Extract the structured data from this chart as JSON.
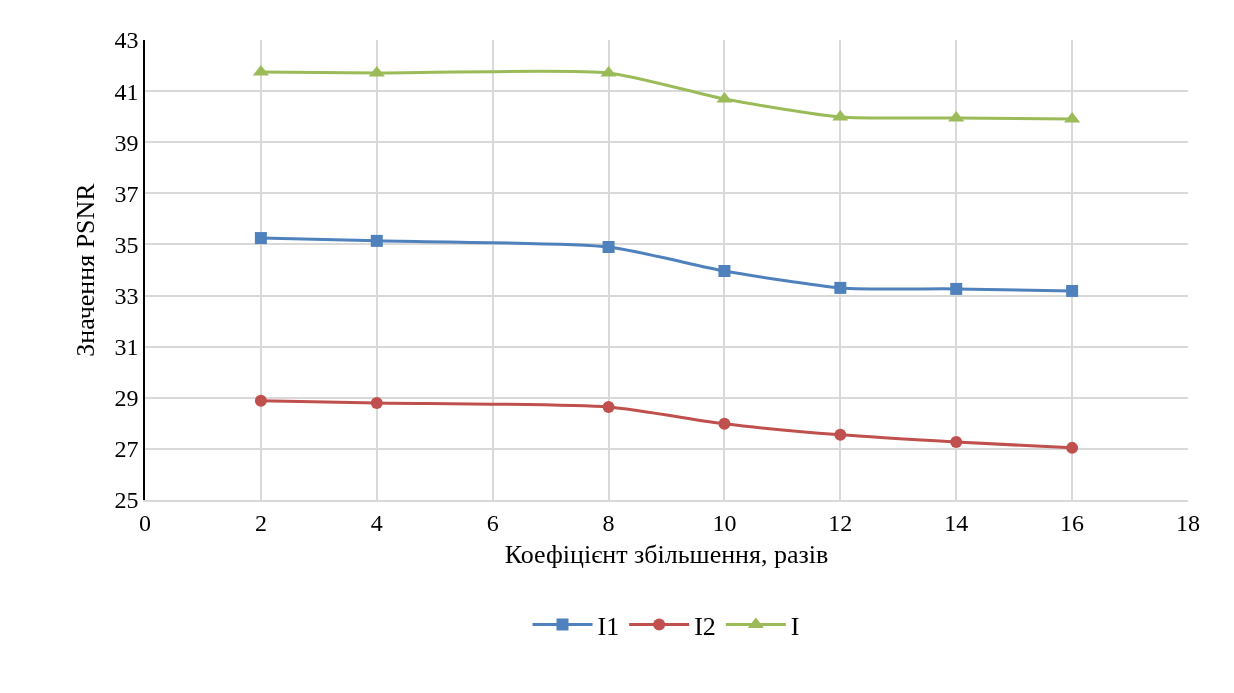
{
  "chart_data": {
    "type": "line",
    "xlabel": "Коефіцієнт збільшення, разів",
    "ylabel": "Значення PSNR",
    "x": [
      2,
      4,
      8,
      10,
      12,
      14,
      16
    ],
    "series": [
      {
        "name": "I1",
        "color": "#4f81bd",
        "marker": "square",
        "values": [
          35.25,
          35.14,
          34.9,
          33.96,
          33.3,
          33.26,
          33.18
        ]
      },
      {
        "name": "I2",
        "color": "#c0504d",
        "marker": "circle",
        "values": [
          28.88,
          28.8,
          28.64,
          27.98,
          27.55,
          27.27,
          27.04
        ]
      },
      {
        "name": "I",
        "color": "#9bbb59",
        "marker": "triangle",
        "values": [
          41.75,
          41.71,
          41.71,
          40.69,
          39.99,
          39.95,
          39.91
        ]
      }
    ],
    "xlim": [
      0,
      18
    ],
    "xticks": [
      0,
      2,
      4,
      6,
      8,
      10,
      12,
      14,
      16,
      18
    ],
    "ylim": [
      25,
      43
    ],
    "yticks": [
      25,
      27,
      29,
      31,
      33,
      35,
      37,
      39,
      41,
      43
    ],
    "grid": true,
    "legend": "bottom",
    "line_style": "solid"
  }
}
